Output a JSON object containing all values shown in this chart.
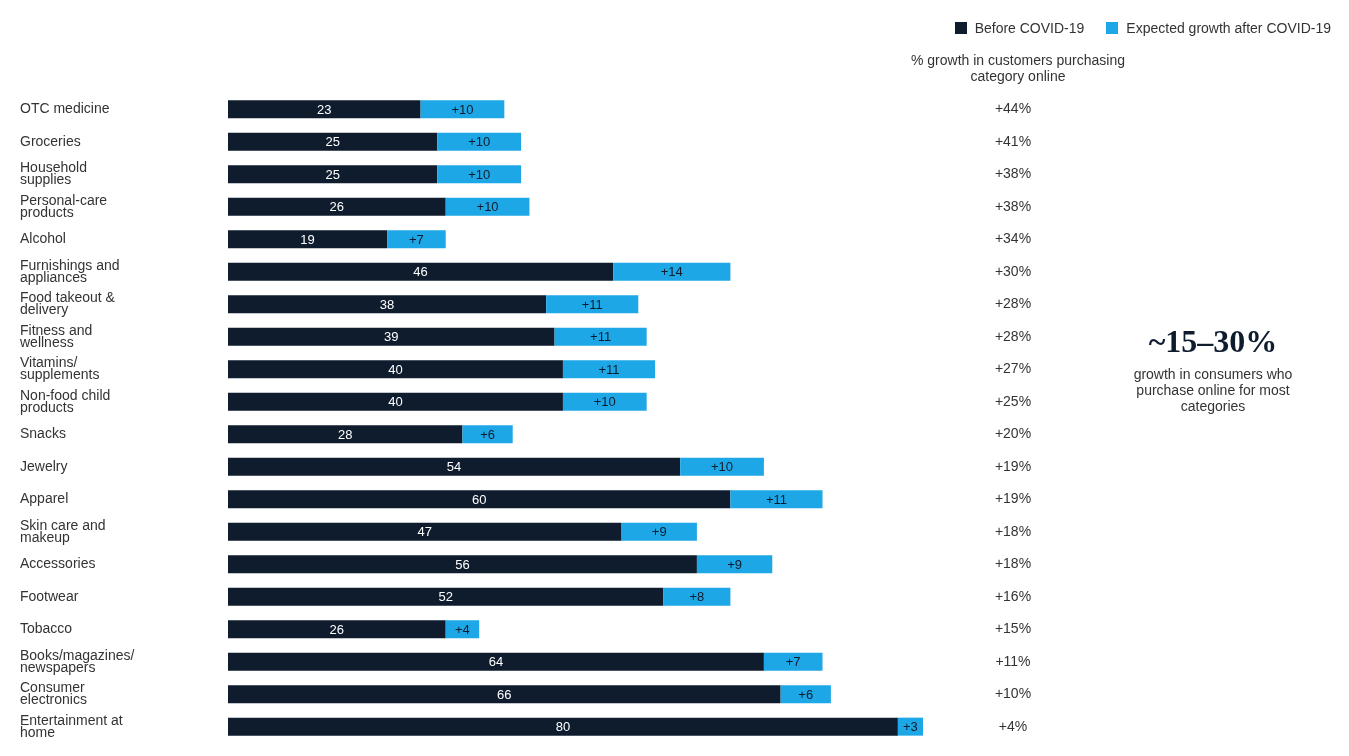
{
  "chart_data": {
    "type": "bar",
    "orientation": "horizontal",
    "stacked": true,
    "legend": "top right",
    "tick_labels": false,
    "categories": [
      "OTC medicine",
      "Groceries",
      "Household supplies",
      "Personal-care products",
      "Alcohol",
      "Furnishings and appliances",
      "Food takeout & delivery",
      "Fitness and wellness",
      "Vitamins/supplements",
      "Non-food child products",
      "Snacks",
      "Jewelry",
      "Apparel",
      "Skin care and makeup",
      "Accessories",
      "Footwear",
      "Tobacco",
      "Books/magazines/newspapers",
      "Consumer electronics",
      "Entertainment at home"
    ],
    "series": [
      {
        "name": "Before COVID-19",
        "color": "#0f1c2e",
        "values": [
          23,
          25,
          25,
          26,
          19,
          46,
          38,
          39,
          40,
          40,
          28,
          54,
          60,
          47,
          56,
          52,
          26,
          64,
          66,
          80
        ],
        "value_labels": [
          "23",
          "25",
          "25",
          "26",
          "19",
          "46",
          "38",
          "39",
          "40",
          "40",
          "28",
          "54",
          "60",
          "47",
          "56",
          "52",
          "26",
          "64",
          "66",
          "80"
        ]
      },
      {
        "name": "Expected growth after COVID-19",
        "color": "#1ea7e6",
        "values": [
          10,
          10,
          10,
          10,
          7,
          14,
          11,
          11,
          11,
          10,
          6,
          10,
          11,
          9,
          9,
          8,
          4,
          7,
          6,
          3
        ],
        "value_labels": [
          "+10",
          "+10",
          "+10",
          "+10",
          "+7",
          "+14",
          "+11",
          "+11",
          "+11",
          "+10",
          "+6",
          "+10",
          "+11",
          "+9",
          "+9",
          "+8",
          "+4",
          "+7",
          "+6",
          "+3"
        ]
      }
    ],
    "annotations": [
      "% growth in customers purchasing category online",
      "+44%",
      "+41%",
      "+38%",
      "+38%",
      "+34%",
      "+30%",
      "+28%",
      "+28%",
      "+27%",
      "+25%",
      "+20%",
      "+19%",
      "+19%",
      "+18%",
      "+18%",
      "+16%",
      "+15%",
      "+11%",
      "+10%",
      "+4%",
      "~15–30%",
      "growth in consumers who purchase online for most categories"
    ]
  }
}
